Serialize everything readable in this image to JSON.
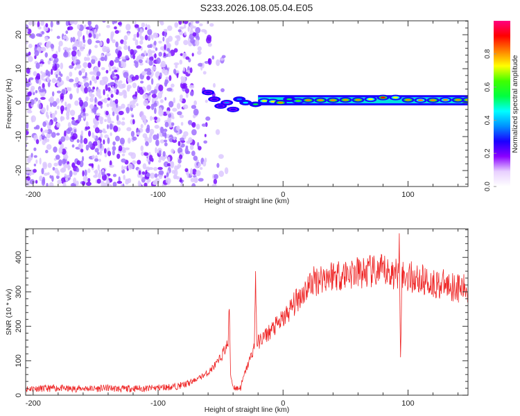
{
  "title": "S233.2026.108.05.04.E05",
  "chart_data": [
    {
      "type": "heatmap",
      "xlabel": "Height of straight line (km)",
      "ylabel": "Frequency (Hz)",
      "xlim": [
        -206,
        148
      ],
      "ylim": [
        -24.7,
        24.1
      ],
      "xticks": [
        -200,
        -100,
        0,
        100
      ],
      "yticks": [
        -20,
        -10,
        0,
        10,
        20
      ],
      "colorbar": {
        "label": "Normalized spectral amplitude",
        "range": [
          0,
          1
        ],
        "ticks": [
          "0.0",
          "0.2",
          "0.4",
          "0.6",
          "0.8"
        ],
        "colors": [
          "#ffffff",
          "#e8d0ff",
          "#8a00ff",
          "#1a00ff",
          "#0090ff",
          "#00ffff",
          "#00ff40",
          "#40ff00",
          "#ffff00",
          "#ff8000",
          "#ff0000",
          "#ff0080"
        ]
      },
      "noise_region": {
        "x_range": [
          -206,
          -42
        ],
        "freq_range": [
          -24.7,
          24.1
        ],
        "typical_amplitude": 0.1
      },
      "ridge": [
        {
          "x": -60,
          "freq": 3,
          "amp": 0.3
        },
        {
          "x": -55,
          "freq": 1,
          "amp": 0.25
        },
        {
          "x": -50,
          "freq": -1,
          "amp": 0.3
        },
        {
          "x": -45,
          "freq": 0,
          "amp": 0.35
        },
        {
          "x": -40,
          "freq": -2,
          "amp": 0.3
        },
        {
          "x": -35,
          "freq": 1,
          "amp": 0.4
        },
        {
          "x": -30,
          "freq": 0,
          "amp": 0.45
        },
        {
          "x": -22,
          "freq": -0.5,
          "amp": 0.5
        },
        {
          "x": -15,
          "freq": 0.5,
          "amp": 0.7
        },
        {
          "x": -8,
          "freq": 0.3,
          "amp": 0.75
        },
        {
          "x": -2,
          "freq": 0,
          "amp": 0.85
        },
        {
          "x": 5,
          "freq": 1,
          "amp": 0.5
        },
        {
          "x": 12,
          "freq": 0.5,
          "amp": 0.6
        },
        {
          "x": 20,
          "freq": 0.7,
          "amp": 0.85
        },
        {
          "x": 30,
          "freq": 0.7,
          "amp": 0.85
        },
        {
          "x": 40,
          "freq": 0.7,
          "amp": 0.85
        },
        {
          "x": 50,
          "freq": 0.8,
          "amp": 0.85
        },
        {
          "x": 60,
          "freq": 0.8,
          "amp": 0.85
        },
        {
          "x": 70,
          "freq": 1.0,
          "amp": 0.75
        },
        {
          "x": 80,
          "freq": 1.5,
          "amp": 0.9
        },
        {
          "x": 90,
          "freq": 1.5,
          "amp": 0.7
        },
        {
          "x": 100,
          "freq": 0.8,
          "amp": 0.85
        },
        {
          "x": 110,
          "freq": 0.7,
          "amp": 0.8
        },
        {
          "x": 120,
          "freq": 0.7,
          "amp": 0.85
        },
        {
          "x": 130,
          "freq": 0.8,
          "amp": 0.8
        },
        {
          "x": 140,
          "freq": 0.8,
          "amp": 0.85
        },
        {
          "x": 148,
          "freq": 0.8,
          "amp": 0.85
        }
      ]
    },
    {
      "type": "line",
      "xlabel": "Height of straight line (km)",
      "ylabel": "SNR (10 * v/v)",
      "xlim": [
        -206,
        148
      ],
      "ylim": [
        0,
        483
      ],
      "xticks": [
        -200,
        -100,
        0,
        100
      ],
      "yticks": [
        0,
        100,
        200,
        300,
        400
      ],
      "color": "#ee2222",
      "series": [
        {
          "name": "SNR",
          "x": [
            -206,
            -200,
            -190,
            -180,
            -170,
            -160,
            -150,
            -140,
            -130,
            -120,
            -110,
            -100,
            -90,
            -85,
            -80,
            -75,
            -70,
            -65,
            -60,
            -55,
            -52,
            -50,
            -47,
            -44,
            -43,
            -42,
            -40,
            -37,
            -34,
            -31,
            -28,
            -25,
            -23,
            -22,
            -21,
            -18,
            -15,
            -12,
            -9,
            -6,
            -3,
            0,
            3,
            6,
            9,
            12,
            15,
            18,
            21,
            24,
            27,
            30,
            35,
            40,
            45,
            50,
            55,
            60,
            65,
            70,
            75,
            80,
            85,
            90,
            92,
            93,
            94,
            95,
            100,
            105,
            110,
            115,
            120,
            125,
            130,
            135,
            140,
            145,
            148
          ],
          "y": [
            18,
            20,
            19,
            21,
            18,
            20,
            19,
            21,
            18,
            20,
            19,
            22,
            24,
            26,
            30,
            35,
            45,
            55,
            65,
            85,
            95,
            110,
            130,
            150,
            250,
            60,
            25,
            20,
            22,
            60,
            90,
            120,
            140,
            360,
            150,
            160,
            170,
            180,
            190,
            200,
            210,
            220,
            235,
            250,
            265,
            280,
            295,
            305,
            320,
            330,
            335,
            340,
            345,
            350,
            350,
            352,
            355,
            355,
            355,
            358,
            355,
            360,
            355,
            350,
            360,
            470,
            110,
            345,
            345,
            340,
            335,
            330,
            325,
            322,
            320,
            318,
            312,
            308,
            305
          ]
        }
      ]
    }
  ]
}
